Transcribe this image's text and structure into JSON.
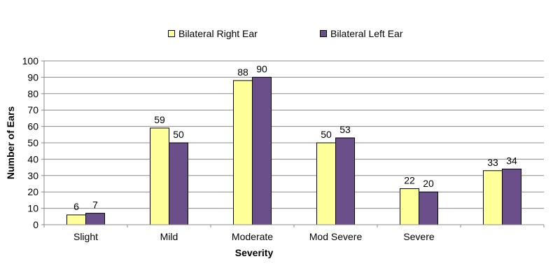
{
  "chart_data": {
    "type": "bar",
    "xlabel": "Severity",
    "ylabel": "Number of Ears",
    "categories": [
      "Slight",
      "Mild",
      "Moderate",
      "Mod Severe",
      "Severe",
      ""
    ],
    "series": [
      {
        "name": "Bilateral Right Ear",
        "values": [
          6,
          59,
          88,
          50,
          22,
          33
        ],
        "color": "#ffff99"
      },
      {
        "name": "Bilateral Left Ear",
        "values": [
          7,
          50,
          90,
          53,
          20,
          34
        ],
        "color": "#6b4f8a"
      }
    ],
    "ylim": [
      0,
      100
    ],
    "yticks": [
      "0",
      "10",
      "20",
      "30",
      "40",
      "50",
      "60",
      "70",
      "80",
      "90",
      "100"
    ],
    "grid": true,
    "legend_position": "top"
  }
}
